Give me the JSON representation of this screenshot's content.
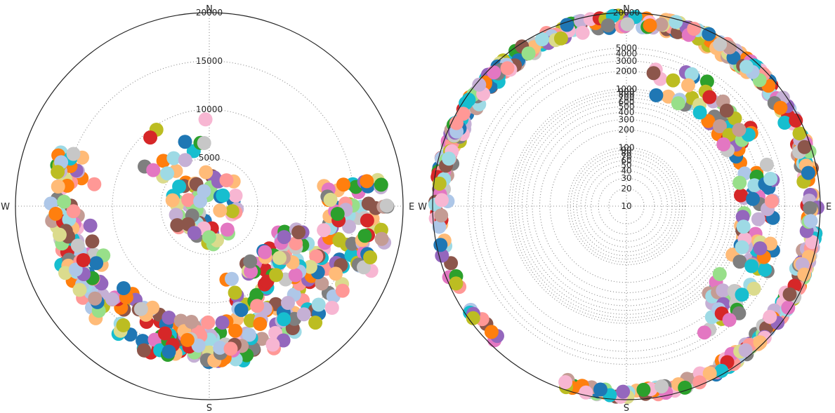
{
  "palette": [
    "#1f77b4",
    "#ff7f0e",
    "#2ca02c",
    "#d62728",
    "#9467bd",
    "#8c564b",
    "#e377c2",
    "#7f7f7f",
    "#bcbd22",
    "#17becf",
    "#aec7e8",
    "#ffbb78",
    "#98df8a",
    "#ff9896",
    "#c5b0d5",
    "#c49c94",
    "#f7b6d2",
    "#c7c7c7",
    "#dbdb8d",
    "#9edae5"
  ],
  "chart_data": [
    {
      "type": "scatter",
      "projection": "polar",
      "radial_scale": "linear",
      "rmax": 20000,
      "compass_labels": {
        "N": "N",
        "E": "E",
        "S": "S",
        "W": "W"
      },
      "radial_ticks": [
        {
          "value": 5000,
          "label": "5000"
        },
        {
          "value": 10000,
          "label": "10000"
        },
        {
          "value": 15000,
          "label": "15000"
        },
        {
          "value": 20000,
          "label": "20000"
        }
      ],
      "grid": true,
      "arcs": [
        {
          "rmin": 12000,
          "rmax": 16500,
          "theta_from": 285,
          "theta_to": 80,
          "count": 230
        },
        {
          "rmin": 16000,
          "rmax": 18500,
          "theta_from": 80,
          "theta_to": 112,
          "count": 30
        },
        {
          "rmin": 1000,
          "rmax": 4000,
          "theta_from": 0,
          "theta_to": 360,
          "count": 60
        },
        {
          "rmin": 7000,
          "rmax": 11500,
          "theta_from": 105,
          "theta_to": 170,
          "count": 60
        },
        {
          "rmin": 12000,
          "rmax": 16000,
          "theta_from": 168,
          "theta_to": 196,
          "count": 30
        },
        {
          "rmin": 14000,
          "rmax": 16500,
          "theta_from": 236,
          "theta_to": 292,
          "count": 65
        },
        {
          "rmin": 5000,
          "rmax": 10000,
          "theta_from": 300,
          "theta_to": 360,
          "count": 15
        }
      ]
    },
    {
      "type": "scatter",
      "projection": "polar",
      "radial_scale": "log",
      "rmin": 10,
      "rmax": 20000,
      "compass_labels": {
        "N": "N",
        "E": "E",
        "S": "S",
        "W": "W"
      },
      "radial_ticks": [
        {
          "value": 10,
          "label": "10"
        },
        {
          "value": 20,
          "label": "20"
        },
        {
          "value": 30,
          "label": "30"
        },
        {
          "value": 40,
          "label": "40"
        },
        {
          "value": 50,
          "label": "50"
        },
        {
          "value": 60,
          "label": "60"
        },
        {
          "value": 70,
          "label": "70"
        },
        {
          "value": 80,
          "label": "80"
        },
        {
          "value": 90,
          "label": "90"
        },
        {
          "value": 100,
          "label": "100"
        },
        {
          "value": 200,
          "label": "200"
        },
        {
          "value": 300,
          "label": "300"
        },
        {
          "value": 400,
          "label": "400"
        },
        {
          "value": 500,
          "label": "500"
        },
        {
          "value": 600,
          "label": "600"
        },
        {
          "value": 700,
          "label": "700"
        },
        {
          "value": 800,
          "label": "800"
        },
        {
          "value": 900,
          "label": "900"
        },
        {
          "value": 1000,
          "label": "1000"
        },
        {
          "value": 2000,
          "label": "2000"
        },
        {
          "value": 3000,
          "label": "3000"
        },
        {
          "value": 4000,
          "label": "4000"
        },
        {
          "value": 5000,
          "label": "5000"
        },
        {
          "value": 20000,
          "label": "20000"
        }
      ],
      "grid": true,
      "arcs": [
        {
          "rmin": 11000,
          "rmax": 19500,
          "theta_from": 270,
          "theta_to": 450,
          "count": 280
        },
        {
          "rmin": 12000,
          "rmax": 19000,
          "theta_from": 90,
          "theta_to": 150,
          "count": 120
        },
        {
          "rmin": 13000,
          "rmax": 19000,
          "theta_from": 150,
          "theta_to": 200,
          "count": 60
        },
        {
          "rmin": 13000,
          "rmax": 19000,
          "theta_from": 215,
          "theta_to": 300,
          "count": 50
        },
        {
          "rmin": 900,
          "rmax": 3500,
          "theta_from": 10,
          "theta_to": 150,
          "count": 110
        },
        {
          "rmin": 2000,
          "rmax": 4500,
          "theta_from": 100,
          "theta_to": 140,
          "count": 20
        }
      ]
    }
  ]
}
